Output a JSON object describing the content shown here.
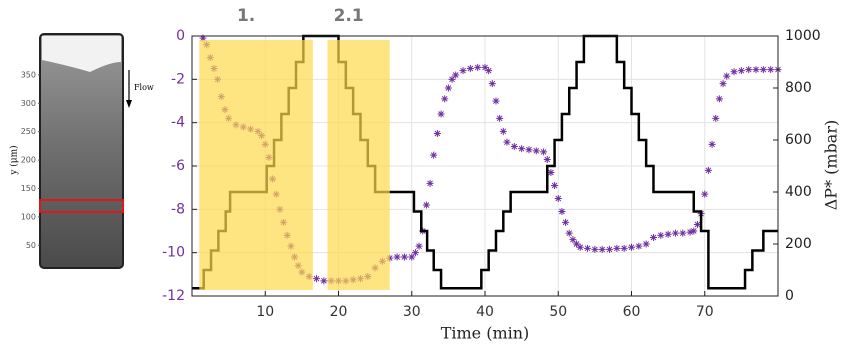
{
  "chart_data": {
    "type": "scatter-step",
    "xlabel": "Time (min)",
    "y2label": "ΔP* (mbar)",
    "xlim": [
      0,
      80
    ],
    "xticks": [
      10,
      20,
      30,
      40,
      50,
      60,
      70
    ],
    "ylim": [
      -12,
      0
    ],
    "yticks": [
      0,
      -2,
      -4,
      -6,
      -8,
      -10,
      -12
    ],
    "ytick_color": "#7030a0",
    "y2lim": [
      0,
      1000
    ],
    "y2ticks": [
      0,
      200,
      400,
      600,
      800,
      1000
    ],
    "grid": true,
    "regions": [
      {
        "label": "1.",
        "x": [
          1,
          16.5
        ],
        "color": "#ffd84d"
      },
      {
        "label": "2.1",
        "x": [
          18.5,
          27
        ],
        "color": "#ffd84d"
      }
    ],
    "series": [
      {
        "color": "#7030a0",
        "marker": "asterisk",
        "x": [
          1.5,
          2,
          2.5,
          3,
          3.5,
          4,
          4.5,
          5,
          6,
          7,
          8,
          9,
          9.5,
          10,
          10.5,
          11,
          11.5,
          12,
          12.5,
          13,
          13.5,
          14,
          14.5,
          15,
          16,
          17,
          18,
          19,
          20,
          21,
          22,
          23,
          24,
          25,
          26,
          27,
          28,
          29,
          30,
          30.5,
          31,
          31.5,
          32,
          32.5,
          33,
          33.5,
          34,
          34.5,
          35,
          35.5,
          36,
          37,
          38,
          39,
          40,
          40.5,
          41,
          41.5,
          42,
          42.5,
          43,
          44,
          45,
          46,
          47,
          48,
          48.5,
          49,
          49.5,
          50,
          50.5,
          51,
          51.5,
          52,
          52.5,
          53,
          54,
          55,
          56,
          57,
          58,
          59,
          60,
          61,
          62,
          63,
          64,
          65,
          66,
          67,
          68,
          68.5,
          69,
          69.5,
          70,
          70.5,
          71,
          71.5,
          72,
          72.5,
          73,
          74,
          75,
          76,
          77,
          78,
          79,
          80
        ],
        "values": [
          -0.1,
          -0.4,
          -1.0,
          -1.5,
          -2.0,
          -2.8,
          -3.4,
          -3.8,
          -4.1,
          -4.2,
          -4.3,
          -4.4,
          -4.6,
          -5.0,
          -5.6,
          -6.6,
          -7.3,
          -8.0,
          -8.6,
          -9.2,
          -9.7,
          -10.2,
          -10.6,
          -10.9,
          -11.1,
          -11.2,
          -11.3,
          -11.3,
          -11.3,
          -11.3,
          -11.25,
          -11.2,
          -11.1,
          -10.7,
          -10.4,
          -10.25,
          -10.2,
          -10.2,
          -10.2,
          -10.0,
          -9.7,
          -9.0,
          -7.8,
          -6.8,
          -5.5,
          -4.5,
          -3.6,
          -2.9,
          -2.4,
          -2.0,
          -1.8,
          -1.6,
          -1.5,
          -1.45,
          -1.45,
          -1.6,
          -2.2,
          -3.0,
          -3.8,
          -4.4,
          -4.9,
          -5.1,
          -5.2,
          -5.25,
          -5.3,
          -5.35,
          -5.7,
          -6.3,
          -6.9,
          -7.5,
          -8.1,
          -8.6,
          -9.1,
          -9.4,
          -9.6,
          -9.75,
          -9.8,
          -9.85,
          -9.85,
          -9.85,
          -9.8,
          -9.8,
          -9.75,
          -9.7,
          -9.6,
          -9.3,
          -9.2,
          -9.15,
          -9.1,
          -9.1,
          -9.05,
          -9.0,
          -8.7,
          -8.2,
          -7.3,
          -6.2,
          -5.0,
          -3.8,
          -2.9,
          -2.2,
          -1.85,
          -1.65,
          -1.6,
          -1.55,
          -1.55,
          -1.55,
          -1.55,
          -1.55
        ]
      },
      {
        "color": "#000000",
        "axis": "y2",
        "step": true,
        "x": [
          0,
          1.6,
          2.6,
          3.6,
          4.6,
          5.2,
          10.2,
          11.2,
          12.2,
          13.2,
          14.2,
          15.2,
          20,
          21,
          22,
          23,
          24,
          25,
          30.3,
          31.3,
          32.1,
          33,
          34,
          39.5,
          40.5,
          41.5,
          42.5,
          43.5,
          48.5,
          49.5,
          50.5,
          51.5,
          52.5,
          53.5,
          58,
          59,
          60,
          61,
          62,
          63,
          68.5,
          69.5,
          70.5,
          75.5,
          76.5,
          78,
          80
        ],
        "values": [
          30,
          100,
          175,
          250,
          325,
          400,
          500,
          600,
          700,
          800,
          900,
          1000,
          900,
          800,
          700,
          600,
          500,
          400,
          325,
          250,
          175,
          100,
          30,
          100,
          175,
          250,
          325,
          400,
          500,
          600,
          700,
          800,
          900,
          1000,
          900,
          800,
          700,
          600,
          500,
          400,
          325,
          250,
          30,
          100,
          175,
          250,
          250
        ]
      }
    ]
  },
  "inset": {
    "ylabel": "y (μm)",
    "ylim": [
      10,
      422
    ],
    "yticks": [
      50,
      100,
      150,
      200,
      250,
      300,
      350
    ],
    "flow_label": "Flow"
  }
}
